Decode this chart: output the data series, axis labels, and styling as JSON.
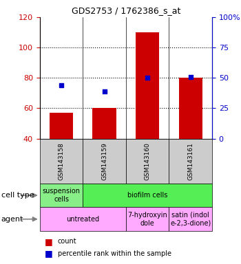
{
  "title": "GDS2753 / 1762386_s_at",
  "samples": [
    "GSM143158",
    "GSM143159",
    "GSM143160",
    "GSM143161"
  ],
  "bar_tops": [
    57,
    60,
    110,
    80
  ],
  "bar_color": "#cc0000",
  "dot_values_pct": [
    44,
    39,
    50,
    51
  ],
  "dot_color": "#0000cc",
  "ylim_left": [
    40,
    120
  ],
  "left_ticks": [
    40,
    60,
    80,
    100,
    120
  ],
  "right_ticks": [
    0,
    25,
    50,
    75,
    100
  ],
  "right_tick_labels": [
    "0",
    "25",
    "50",
    "75",
    "100%"
  ],
  "bar_bottom": 40,
  "pct_min": 0,
  "pct_max": 100,
  "cell_type_colors": [
    "#88ee88",
    "#55dd55"
  ],
  "agent_color": "#ffaaff",
  "sample_box_color": "#cccccc",
  "grid_color": "#000000",
  "left_axis_color": "#cc0000",
  "right_axis_color": "#0000cc"
}
